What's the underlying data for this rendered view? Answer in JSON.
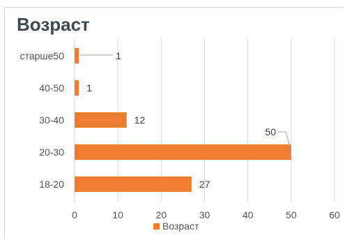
{
  "chart_data": {
    "type": "bar",
    "orientation": "horizontal",
    "title": "Возраст",
    "categories": [
      "18-20",
      "20-30",
      "30-40",
      "40-50",
      "старше50"
    ],
    "series": [
      {
        "name": "Возраст",
        "values": [
          27,
          50,
          12,
          1,
          1
        ],
        "color": "#ed7d31"
      }
    ],
    "xlim": [
      0,
      60
    ],
    "x_ticks": [
      "0",
      "10",
      "20",
      "30",
      "40",
      "50",
      "60"
    ],
    "grid": "vertical",
    "legend": "bottom",
    "data_labels": true
  }
}
